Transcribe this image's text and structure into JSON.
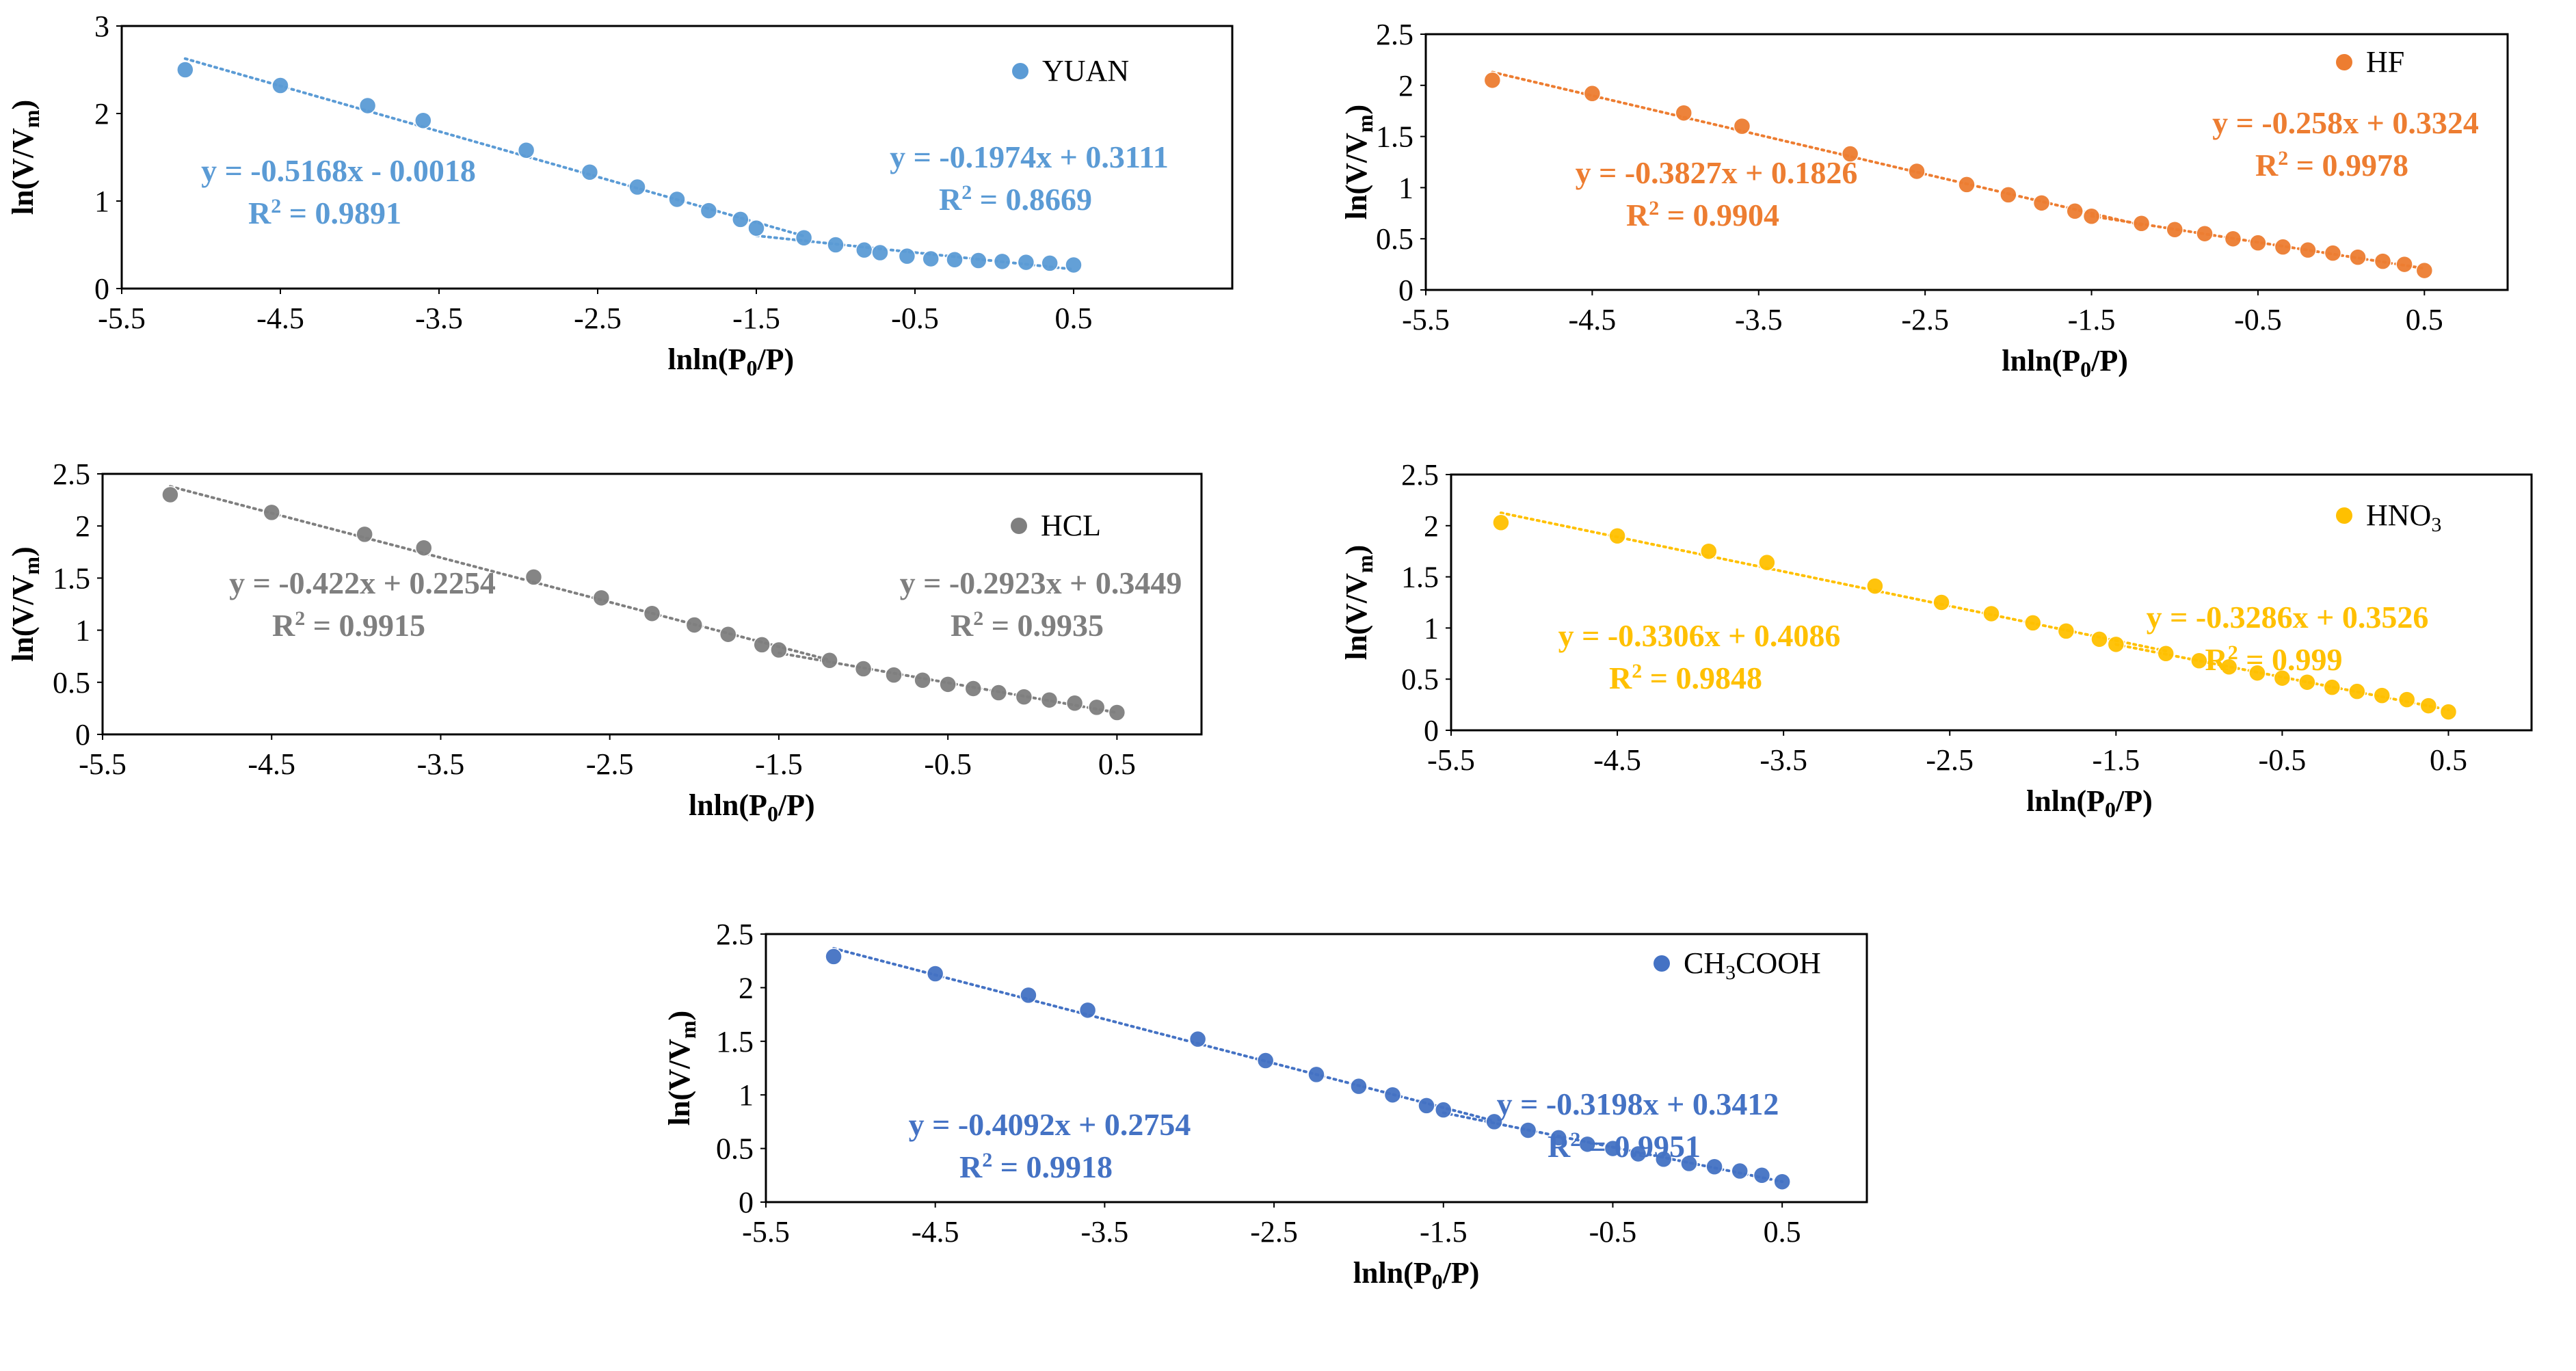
{
  "chart_data": [
    {
      "type": "scatter",
      "series_name": "YUAN",
      "color": "#5B9BD5",
      "xlabel": "lnln(P0/P)",
      "ylabel": "ln(V/Vm)",
      "xlim": [
        -5.5,
        1.5
      ],
      "ylim": [
        0,
        3
      ],
      "xticks": [
        "-5.5",
        "-4.5",
        "-3.5",
        "-2.5",
        "-1.5",
        "-0.5",
        "0.5"
      ],
      "yticks": [
        "0",
        "1",
        "2",
        "3"
      ],
      "x": [
        -5.1,
        -4.5,
        -3.95,
        -3.6,
        -2.95,
        -2.55,
        -2.25,
        -2.0,
        -1.8,
        -1.6,
        -1.5,
        -1.2,
        -1.0,
        -0.82,
        -0.72,
        -0.55,
        -0.4,
        -0.25,
        -0.1,
        0.05,
        0.2,
        0.35,
        0.5
      ],
      "y": [
        2.5,
        2.32,
        2.09,
        1.92,
        1.58,
        1.33,
        1.16,
        1.02,
        0.89,
        0.79,
        0.69,
        0.58,
        0.5,
        0.44,
        0.41,
        0.37,
        0.34,
        0.33,
        0.32,
        0.31,
        0.3,
        0.29,
        0.27
      ],
      "fits": [
        {
          "equation": "y = -0.5168x - 0.0018",
          "r2": "R² = 0.9891"
        },
        {
          "equation": "y = -0.1974x + 0.3111",
          "r2": "R² = 0.8669"
        }
      ]
    },
    {
      "type": "scatter",
      "series_name": "HF",
      "color": "#ED7D31",
      "xlabel": "lnln(P0/P)",
      "ylabel": "ln(V/Vm)",
      "xlim": [
        -5.5,
        1.0
      ],
      "ylim": [
        0,
        2.5
      ],
      "xticks": [
        "-5.5",
        "-4.5",
        "-3.5",
        "-2.5",
        "-1.5",
        "-0.5",
        "0.5"
      ],
      "yticks": [
        "0",
        "0.5",
        "1",
        "1.5",
        "2",
        "2.5"
      ],
      "x": [
        -5.1,
        -4.5,
        -3.95,
        -3.6,
        -2.95,
        -2.55,
        -2.25,
        -2.0,
        -1.8,
        -1.6,
        -1.5,
        -1.2,
        -1.0,
        -0.82,
        -0.65,
        -0.5,
        -0.35,
        -0.2,
        -0.05,
        0.1,
        0.25,
        0.38,
        0.5
      ],
      "y": [
        2.05,
        1.92,
        1.73,
        1.6,
        1.33,
        1.16,
        1.03,
        0.93,
        0.85,
        0.77,
        0.72,
        0.65,
        0.59,
        0.55,
        0.5,
        0.46,
        0.42,
        0.39,
        0.36,
        0.32,
        0.28,
        0.25,
        0.19
      ],
      "fits": [
        {
          "equation": "y = -0.3827x + 0.1826",
          "r2": "R² = 0.9904"
        },
        {
          "equation": "y = -0.258x + 0.3324",
          "r2": "R² = 0.9978"
        }
      ]
    },
    {
      "type": "scatter",
      "series_name": "HCL",
      "color": "#7F7F7F",
      "xlabel": "lnln(P0/P)",
      "ylabel": "ln(V/Vm)",
      "xlim": [
        -5.5,
        1.0
      ],
      "ylim": [
        0,
        2.5
      ],
      "xticks": [
        "-5.5",
        "-4.5",
        "-3.5",
        "-2.5",
        "-1.5",
        "-0.5",
        "0.5"
      ],
      "yticks": [
        "0",
        "0.5",
        "1",
        "1.5",
        "2",
        "2.5"
      ],
      "x": [
        -5.1,
        -4.5,
        -3.95,
        -3.6,
        -2.95,
        -2.55,
        -2.25,
        -2.0,
        -1.8,
        -1.6,
        -1.5,
        -1.2,
        -1.0,
        -0.82,
        -0.65,
        -0.5,
        -0.35,
        -0.2,
        -0.05,
        0.1,
        0.25,
        0.38,
        0.5
      ],
      "y": [
        2.3,
        2.13,
        1.92,
        1.79,
        1.51,
        1.31,
        1.16,
        1.05,
        0.96,
        0.86,
        0.81,
        0.71,
        0.63,
        0.57,
        0.52,
        0.48,
        0.44,
        0.4,
        0.36,
        0.33,
        0.3,
        0.26,
        0.21
      ],
      "fits": [
        {
          "equation": "y = -0.422x + 0.2254",
          "r2": "R² = 0.9915"
        },
        {
          "equation": "y = -0.2923x + 0.3449",
          "r2": "R² = 0.9935"
        }
      ]
    },
    {
      "type": "scatter",
      "series_name": "HNO3",
      "color": "#FFC000",
      "xlabel": "lnln(P0/P)",
      "ylabel": "ln(V/Vm)",
      "xlim": [
        -5.5,
        1.0
      ],
      "ylim": [
        0,
        2.5
      ],
      "xticks": [
        "-5.5",
        "-4.5",
        "-3.5",
        "-2.5",
        "-1.5",
        "-0.5",
        "0.5"
      ],
      "yticks": [
        "0",
        "0.5",
        "1",
        "1.5",
        "2",
        "2.5"
      ],
      "x": [
        -5.2,
        -4.5,
        -3.95,
        -3.6,
        -2.95,
        -2.55,
        -2.25,
        -2.0,
        -1.8,
        -1.6,
        -1.5,
        -1.2,
        -1.0,
        -0.82,
        -0.65,
        -0.5,
        -0.35,
        -0.2,
        -0.05,
        0.1,
        0.25,
        0.38,
        0.5
      ],
      "y": [
        2.03,
        1.9,
        1.75,
        1.64,
        1.41,
        1.25,
        1.14,
        1.05,
        0.97,
        0.89,
        0.84,
        0.75,
        0.68,
        0.62,
        0.56,
        0.51,
        0.47,
        0.42,
        0.38,
        0.34,
        0.3,
        0.24,
        0.18
      ],
      "fits": [
        {
          "equation": "y = -0.3306x + 0.4086",
          "r2": "R² = 0.9848"
        },
        {
          "equation": "y = -0.3286x + 0.3526",
          "r2": "R² = 0.999"
        }
      ]
    },
    {
      "type": "scatter",
      "series_name": "CH3COOH",
      "color": "#4472C4",
      "xlabel": "lnln(P0/P)",
      "ylabel": "ln(V/Vm)",
      "xlim": [
        -5.5,
        1.0
      ],
      "ylim": [
        0,
        2.5
      ],
      "xticks": [
        "-5.5",
        "-4.5",
        "-3.5",
        "-2.5",
        "-1.5",
        "-0.5",
        "0.5"
      ],
      "yticks": [
        "0",
        "0.5",
        "1",
        "1.5",
        "2",
        "2.5"
      ],
      "x": [
        -5.1,
        -4.5,
        -3.95,
        -3.6,
        -2.95,
        -2.55,
        -2.25,
        -2.0,
        -1.8,
        -1.6,
        -1.5,
        -1.2,
        -1.0,
        -0.82,
        -0.65,
        -0.5,
        -0.35,
        -0.2,
        -0.05,
        0.1,
        0.25,
        0.38,
        0.5
      ],
      "y": [
        2.29,
        2.13,
        1.93,
        1.79,
        1.52,
        1.32,
        1.19,
        1.08,
        1.0,
        0.9,
        0.86,
        0.75,
        0.67,
        0.6,
        0.54,
        0.5,
        0.45,
        0.4,
        0.36,
        0.33,
        0.29,
        0.25,
        0.19
      ],
      "fits": [
        {
          "equation": "y = -0.4092x + 0.2754",
          "r2": "R² = 0.9918"
        },
        {
          "equation": "y = -0.3198x + 0.3412",
          "r2": "R² = 0.9951"
        }
      ]
    }
  ]
}
